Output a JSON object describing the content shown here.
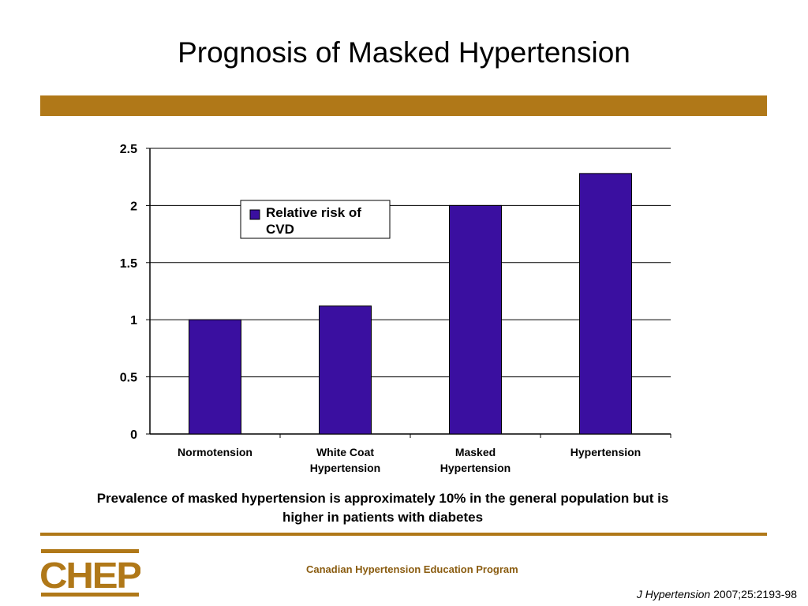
{
  "slide": {
    "title": "Prognosis of Masked Hypertension",
    "caption_line1": "Prevalence of masked hypertension is approximately 10% in the general population but is",
    "caption_line2": "higher in patients with diabetes",
    "logo_text": "CHEP",
    "program_name": "Canadian Hypertension Education Program",
    "citation_journal": "J Hypertension",
    "citation_ref": "2007;25:2193-98"
  },
  "colors": {
    "accent_gold": "#b07818",
    "bar_fill": "#3a0fa0",
    "program_text": "#8a5c10"
  },
  "chart_data": {
    "type": "bar",
    "categories": [
      "Normotension",
      "White Coat Hypertension",
      "Masked Hypertension",
      "Hypertension"
    ],
    "category_lines": [
      [
        "Normotension"
      ],
      [
        "White Coat",
        "Hypertension"
      ],
      [
        "Masked",
        "Hypertension"
      ],
      [
        "Hypertension"
      ]
    ],
    "series": [
      {
        "name": "Relative risk of CVD",
        "values": [
          1.0,
          1.12,
          2.0,
          2.28
        ]
      }
    ],
    "legend_lines": [
      "Relative risk of",
      "CVD"
    ],
    "ylim": [
      0,
      2.5
    ],
    "yticks": [
      0,
      0.5,
      1,
      1.5,
      2,
      2.5
    ],
    "ytick_labels": [
      "0",
      "0.5",
      "1",
      "1.5",
      "2",
      "2.5"
    ],
    "grid": true,
    "legend_position": "upper-left inside plot",
    "title": "",
    "xlabel": "",
    "ylabel": ""
  }
}
